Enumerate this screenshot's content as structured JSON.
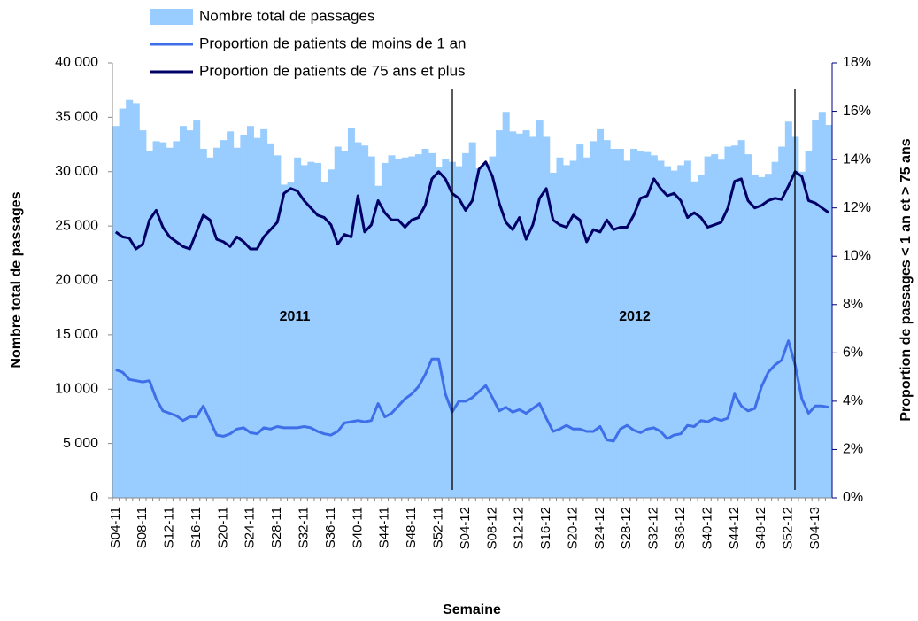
{
  "chart_data": {
    "type": "bar-line",
    "x_title": "Semaine",
    "y_title": "Nombre total de passages",
    "y2_title": "Proportion de passages < 1 an et > 75 ans",
    "annotations": [
      "2011",
      "2012"
    ],
    "categories": [
      "S04-11",
      null,
      null,
      null,
      "S08-11",
      null,
      null,
      null,
      "S12-11",
      null,
      null,
      null,
      "S16-11",
      null,
      null,
      null,
      "S20-11",
      null,
      null,
      null,
      "S24-11",
      null,
      null,
      null,
      "S28-11",
      null,
      null,
      null,
      "S32-11",
      null,
      null,
      null,
      "S36-11",
      null,
      null,
      null,
      "S40-11",
      null,
      null,
      null,
      "S44-11",
      null,
      null,
      null,
      "S48-11",
      null,
      null,
      null,
      "S52-11",
      null,
      null,
      null,
      "S04-12",
      null,
      null,
      null,
      "S08-12",
      null,
      null,
      null,
      "S12-12",
      null,
      null,
      null,
      "S16-12",
      null,
      null,
      null,
      "S20-12",
      null,
      null,
      null,
      "S24-12",
      null,
      null,
      null,
      "S28-12",
      null,
      null,
      null,
      "S32-12",
      null,
      null,
      null,
      "S36-12",
      null,
      null,
      null,
      "S40-12",
      null,
      null,
      null,
      "S44-12",
      null,
      null,
      null,
      "S48-12",
      null,
      null,
      null,
      "S52-12",
      null,
      null,
      null,
      "S04-13",
      null,
      null
    ],
    "series": [
      {
        "name": "Nombre total de passages",
        "type": "bar",
        "color": "#99ccff",
        "values": [
          34200,
          35800,
          36600,
          36300,
          33800,
          31900,
          32800,
          32700,
          32200,
          32800,
          34200,
          33800,
          34700,
          32100,
          31300,
          32200,
          32900,
          33700,
          32200,
          33400,
          34200,
          33100,
          33900,
          32600,
          31500,
          28800,
          29000,
          31300,
          30600,
          30900,
          30800,
          29000,
          30200,
          32300,
          31900,
          34000,
          32700,
          32400,
          31400,
          28700,
          30800,
          31500,
          31200,
          31300,
          31400,
          31600,
          32100,
          31700,
          30400,
          31200,
          30900,
          30500,
          31700,
          32700,
          30300,
          30700,
          31400,
          33800,
          35500,
          33700,
          33500,
          33800,
          33200,
          34700,
          33200,
          29900,
          31300,
          30600,
          31000,
          32500,
          31300,
          32800,
          33900,
          32900,
          32100,
          32100,
          31000,
          32100,
          31900,
          31800,
          31500,
          31000,
          30500,
          30100,
          30600,
          31000,
          29100,
          29700,
          31400,
          31600,
          31100,
          32300,
          32400,
          32900,
          31600,
          29700,
          29500,
          29800,
          30900,
          32300,
          34600,
          33200,
          30000,
          31900,
          34700,
          35500,
          34300
        ]
      },
      {
        "name": "Proportion de patients de moins de 1 an",
        "type": "line",
        "axis": "y2",
        "color": "#3f6fe8",
        "values": [
          5.3,
          5.2,
          4.9,
          4.85,
          4.8,
          4.85,
          4.1,
          3.6,
          3.5,
          3.4,
          3.2,
          3.35,
          3.35,
          3.8,
          3.2,
          2.6,
          2.55,
          2.65,
          2.85,
          2.9,
          2.7,
          2.65,
          2.9,
          2.85,
          2.95,
          2.9,
          2.9,
          2.9,
          2.95,
          2.9,
          2.75,
          2.65,
          2.6,
          2.75,
          3.1,
          3.15,
          3.2,
          3.15,
          3.2,
          3.9,
          3.35,
          3.5,
          3.8,
          4.1,
          4.3,
          4.6,
          5.1,
          5.75,
          5.75,
          4.3,
          3.55,
          4.0,
          4.0,
          4.15,
          4.4,
          4.65,
          4.15,
          3.6,
          3.75,
          3.55,
          3.65,
          3.5,
          3.7,
          3.9,
          3.3,
          2.75,
          2.85,
          3.0,
          2.85,
          2.85,
          2.75,
          2.75,
          2.95,
          2.4,
          2.35,
          2.85,
          3.0,
          2.8,
          2.7,
          2.85,
          2.9,
          2.75,
          2.45,
          2.6,
          2.65,
          3.0,
          2.95,
          3.2,
          3.15,
          3.3,
          3.2,
          3.3,
          4.3,
          3.8,
          3.6,
          3.7,
          4.6,
          5.2,
          5.5,
          5.7,
          6.5,
          5.5,
          4.1,
          3.5,
          3.8,
          3.8,
          3.75
        ]
      },
      {
        "name": "Proportion de patients de 75 ans et plus",
        "type": "line",
        "axis": "y2",
        "color": "#000066",
        "values": [
          11.0,
          10.8,
          10.75,
          10.3,
          10.5,
          11.5,
          11.9,
          11.2,
          10.8,
          10.6,
          10.4,
          10.3,
          11.0,
          11.7,
          11.5,
          10.7,
          10.6,
          10.4,
          10.8,
          10.6,
          10.3,
          10.3,
          10.8,
          11.1,
          11.4,
          12.6,
          12.8,
          12.7,
          12.3,
          12.0,
          11.7,
          11.6,
          11.3,
          10.5,
          10.9,
          10.8,
          12.5,
          11.0,
          11.3,
          12.3,
          11.8,
          11.5,
          11.5,
          11.2,
          11.5,
          11.6,
          12.1,
          13.2,
          13.5,
          13.2,
          12.6,
          12.4,
          11.9,
          12.3,
          13.6,
          13.9,
          13.3,
          12.2,
          11.4,
          11.1,
          11.6,
          10.7,
          11.3,
          12.4,
          12.8,
          11.5,
          11.3,
          11.2,
          11.7,
          11.5,
          10.6,
          11.1,
          11.0,
          11.5,
          11.1,
          11.2,
          11.2,
          11.7,
          12.4,
          12.5,
          13.2,
          12.8,
          12.5,
          12.6,
          12.3,
          11.6,
          11.8,
          11.6,
          11.2,
          11.3,
          11.4,
          12.0,
          13.1,
          13.2,
          12.3,
          12.0,
          12.1,
          12.3,
          12.4,
          12.35,
          12.9,
          13.5,
          13.3,
          12.3,
          12.2,
          12.0,
          11.8
        ]
      }
    ],
    "ylim": [
      0,
      40000
    ],
    "yticks": [
      0,
      {
        "value": 5000,
        "label": "5 000"
      },
      {
        "value": 10000,
        "label": "10 000"
      },
      {
        "value": 15000,
        "label": "15 000"
      },
      {
        "value": 20000,
        "label": "20 000"
      },
      {
        "value": 25000,
        "label": "25 000"
      },
      {
        "value": 30000,
        "label": "30 000"
      },
      {
        "value": 35000,
        "label": "35 000"
      },
      {
        "value": 40000,
        "label": "40 000"
      }
    ],
    "y2lim": [
      0,
      18
    ],
    "y2ticks": [
      {
        "value": 0,
        "label": "0%"
      },
      {
        "value": 2,
        "label": "2%"
      },
      {
        "value": 4,
        "label": "4%"
      },
      {
        "value": 6,
        "label": "6%"
      },
      {
        "value": 8,
        "label": "8%"
      },
      {
        "value": 10,
        "label": "10%"
      },
      {
        "value": 12,
        "label": "12%"
      },
      {
        "value": 14,
        "label": "14%"
      },
      {
        "value": 16,
        "label": "16%"
      },
      {
        "value": 18,
        "label": "18%"
      }
    ]
  }
}
